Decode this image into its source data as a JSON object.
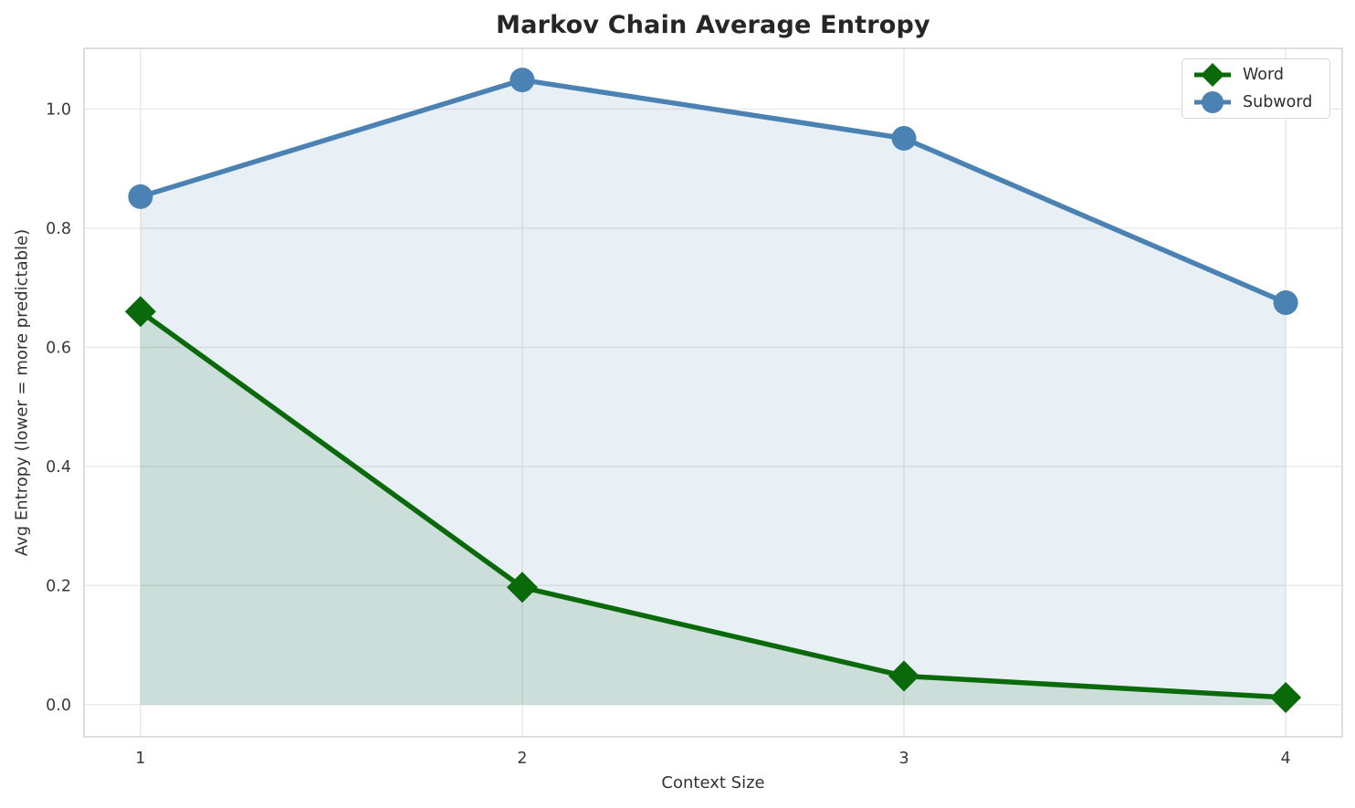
{
  "chart_data": {
    "type": "line",
    "title": "Markov Chain Average Entropy",
    "xlabel": "Context Size",
    "ylabel": "Avg Entropy (lower = more predictable)",
    "x": [
      1,
      2,
      3,
      4
    ],
    "series": [
      {
        "name": "Word",
        "values": [
          0.66,
          0.197,
          0.048,
          0.012
        ],
        "color": "#0a6a0a",
        "marker": "diamond",
        "fill_alpha": 0.13
      },
      {
        "name": "Subword",
        "values": [
          0.853,
          1.049,
          0.951,
          0.675
        ],
        "color": "#4a82b4",
        "marker": "circle",
        "fill_alpha": 0.13
      }
    ],
    "xticks": [
      1,
      2,
      3,
      4
    ],
    "xticklabels": [
      "1",
      "2",
      "3",
      "4"
    ],
    "yticks": [
      0.0,
      0.2,
      0.4,
      0.6,
      0.8,
      1.0
    ],
    "yticklabels": [
      "0.0",
      "0.2",
      "0.4",
      "0.6",
      "0.8",
      "1.0"
    ],
    "xlim": [
      0.852,
      4.148
    ],
    "ylim": [
      -0.054,
      1.102
    ],
    "grid": true,
    "grid_color": "#e7e7e7",
    "spine_color": "#d3d3d3",
    "legend_position": "upper right",
    "area_fill": true,
    "fill_baseline": 0
  }
}
